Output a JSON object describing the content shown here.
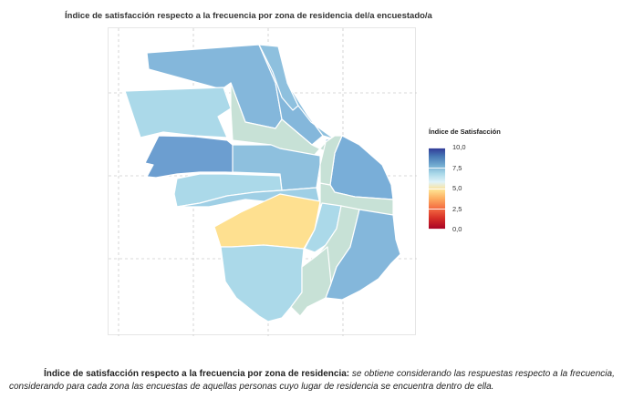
{
  "title": "Índice de satisfacción respecto a la frecuencia por zona de residencia del/a encuestado/a",
  "legend": {
    "title": "Índice de Satisfacción",
    "ticks": [
      "10,0",
      "7,5",
      "5,0",
      "2,5",
      "0,0"
    ],
    "range": [
      0,
      10
    ]
  },
  "zones": [
    {
      "id": "nw",
      "value": 8.0
    },
    {
      "id": "north-center",
      "value": 8.0
    },
    {
      "id": "north-strip",
      "value": 7.8
    },
    {
      "id": "northeast-thin",
      "value": 7.8
    },
    {
      "id": "west",
      "value": 7.3
    },
    {
      "id": "center-north",
      "value": 6.8
    },
    {
      "id": "east-small",
      "value": 7.8
    },
    {
      "id": "band-west",
      "value": 8.5
    },
    {
      "id": "center-band",
      "value": 7.8
    },
    {
      "id": "east",
      "value": 8.2
    },
    {
      "id": "center-mid",
      "value": 6.8
    },
    {
      "id": "diag-strip",
      "value": 6.8
    },
    {
      "id": "center-left",
      "value": 7.3
    },
    {
      "id": "mid-left",
      "value": 7.5
    },
    {
      "id": "central-yellow",
      "value": 5.5
    },
    {
      "id": "right-light",
      "value": 7.3
    },
    {
      "id": "right-gray",
      "value": 6.8
    },
    {
      "id": "southeast",
      "value": 8.0
    },
    {
      "id": "south",
      "value": 7.3
    },
    {
      "id": "south-strip",
      "value": 6.8
    }
  ],
  "caption": {
    "bold": "Índice de satisfacción respecto a la frecuencia por zona de residencia:",
    "italic": " se obtiene considerando las respuestas respecto a la frecuencia, considerando para cada zona las encuestas de aquellas personas cuyo lugar de residencia se encuentra dentro de ella."
  }
}
